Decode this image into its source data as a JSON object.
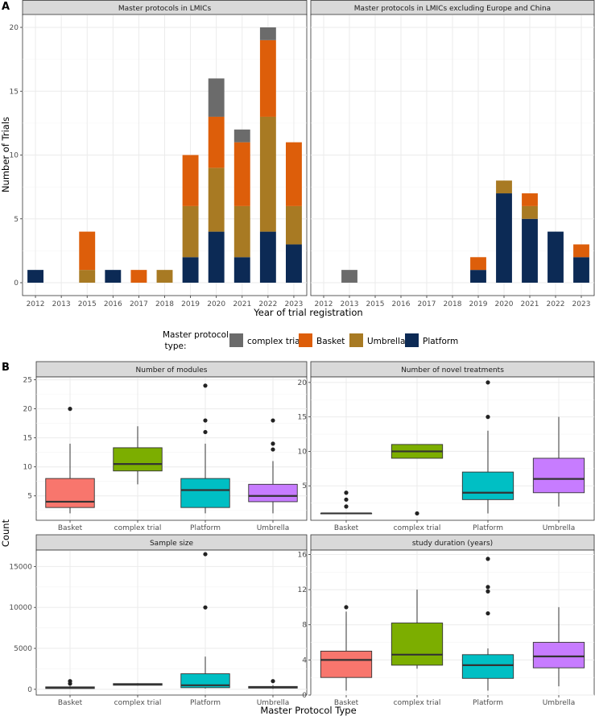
{
  "chart_data": [
    {
      "type": "bar",
      "stacked": true,
      "tag": "A",
      "panels": [
        {
          "strip": "Master protocols in LMICs",
          "categories": [
            "2012",
            "2013",
            "2015",
            "2016",
            "2017",
            "2018",
            "2019",
            "2020",
            "2021",
            "2022",
            "2023"
          ],
          "series": [
            {
              "name": "Platform",
              "values": [
                1,
                0,
                0,
                1,
                0,
                0,
                2,
                4,
                2,
                4,
                3
              ]
            },
            {
              "name": "Umbrella",
              "values": [
                0,
                0,
                1,
                0,
                0,
                1,
                4,
                5,
                4,
                9,
                3
              ]
            },
            {
              "name": "Basket",
              "values": [
                0,
                0,
                3,
                0,
                1,
                0,
                4,
                4,
                5,
                6,
                5
              ]
            },
            {
              "name": "complex trial",
              "values": [
                0,
                0,
                0,
                0,
                0,
                0,
                0,
                3,
                1,
                1,
                0
              ]
            }
          ]
        },
        {
          "strip": "Master protocols in LMICs excluding Europe and China",
          "categories": [
            "2012",
            "2013",
            "2015",
            "2016",
            "2017",
            "2018",
            "2019",
            "2020",
            "2021",
            "2022",
            "2023"
          ],
          "series": [
            {
              "name": "Platform",
              "values": [
                0,
                0,
                0,
                0,
                0,
                0,
                1,
                7,
                5,
                4,
                2
              ]
            },
            {
              "name": "Umbrella",
              "values": [
                0,
                0,
                0,
                0,
                0,
                0,
                0,
                1,
                1,
                0,
                0
              ]
            },
            {
              "name": "Basket",
              "values": [
                0,
                0,
                0,
                0,
                0,
                0,
                1,
                0,
                1,
                0,
                1
              ]
            },
            {
              "name": "complex trial",
              "values": [
                0,
                1,
                0,
                0,
                0,
                0,
                0,
                0,
                0,
                0,
                0
              ]
            }
          ]
        }
      ],
      "xlabel": "Year of trial registration",
      "ylabel": "Number of Trials",
      "ylim": [
        0,
        20.8
      ],
      "yticks": [
        0,
        5,
        10,
        15,
        20
      ],
      "legend": {
        "title_lines": [
          "Master protocol",
          "type:"
        ],
        "position": "bottom",
        "items": [
          {
            "name": "complex trial",
            "color": "#6b6b6b"
          },
          {
            "name": "Basket",
            "color": "#dd5e0a"
          },
          {
            "name": "Umbrella",
            "color": "#a87a23"
          },
          {
            "name": "Platform",
            "color": "#0c2a55"
          }
        ]
      }
    },
    {
      "type": "box",
      "tag": "B",
      "xlabel": "Master Protocol Type",
      "ylabel": "Count",
      "categories": [
        "Basket",
        "complex trial",
        "Platform",
        "Umbrella"
      ],
      "colors": [
        "#f8766d",
        "#7cae00",
        "#00bfc4",
        "#c77cff"
      ],
      "panels": [
        {
          "strip": "Number of modules",
          "ylim": [
            0.8,
            25.5
          ],
          "yticks": [
            5,
            10,
            15,
            20,
            25
          ],
          "boxes": [
            {
              "min": 2,
              "q1": 3,
              "median": 4,
              "q3": 8,
              "max": 14,
              "outliers": [
                20
              ]
            },
            {
              "min": 7,
              "q1": 9.3,
              "median": 10.5,
              "q3": 13.3,
              "max": 17,
              "outliers": []
            },
            {
              "min": 2,
              "q1": 3,
              "median": 6,
              "q3": 8,
              "max": 14,
              "outliers": [
                16,
                18,
                24
              ]
            },
            {
              "min": 2,
              "q1": 4,
              "median": 5,
              "q3": 7,
              "max": 11,
              "outliers": [
                13,
                14,
                18
              ]
            }
          ]
        },
        {
          "strip": "Number of novel treatments",
          "ylim": [
            0,
            20.8
          ],
          "yticks": [
            5,
            10,
            15,
            20
          ],
          "boxes": [
            {
              "min": 1,
              "q1": 1,
              "median": 1,
              "q3": 1,
              "max": 1,
              "outliers": [
                2,
                3,
                4
              ]
            },
            {
              "min": 9,
              "q1": 9,
              "median": 10,
              "q3": 11,
              "max": 11,
              "outliers": [
                1
              ]
            },
            {
              "min": 1,
              "q1": 3,
              "median": 4,
              "q3": 7,
              "max": 13,
              "outliers": [
                15,
                20
              ]
            },
            {
              "min": 2,
              "q1": 4,
              "median": 6,
              "q3": 9,
              "max": 15,
              "outliers": []
            }
          ]
        },
        {
          "strip": "Sample size",
          "ylim": [
            -700,
            17000
          ],
          "yticks": [
            0,
            5000,
            10000,
            15000
          ],
          "boxes": [
            {
              "min": 50,
              "q1": 100,
              "median": 200,
              "q3": 300,
              "max": 400,
              "outliers": [
                700,
                1000
              ]
            },
            {
              "min": 450,
              "q1": 500,
              "median": 600,
              "q3": 700,
              "max": 750,
              "outliers": []
            },
            {
              "min": 100,
              "q1": 200,
              "median": 500,
              "q3": 1900,
              "max": 4000,
              "outliers": [
                10000,
                16500
              ]
            },
            {
              "min": 50,
              "q1": 150,
              "median": 250,
              "q3": 350,
              "max": 500,
              "outliers": [
                1000
              ]
            }
          ]
        },
        {
          "strip": "study duration (years)",
          "ylim": [
            0,
            16.5
          ],
          "yticks": [
            0,
            4,
            8,
            12,
            16
          ],
          "boxes": [
            {
              "min": 0.5,
              "q1": 2,
              "median": 4,
              "q3": 5,
              "max": 9.5,
              "outliers": [
                10
              ]
            },
            {
              "min": 3,
              "q1": 3.4,
              "median": 4.6,
              "q3": 8.2,
              "max": 12,
              "outliers": []
            },
            {
              "min": 0.5,
              "q1": 1.9,
              "median": 3.4,
              "q3": 4.6,
              "max": 5.3,
              "outliers": [
                9.3,
                11.8,
                12.3,
                15.5
              ]
            },
            {
              "min": 1,
              "q1": 3.1,
              "median": 4.4,
              "q3": 6,
              "max": 10,
              "outliers": []
            }
          ]
        }
      ]
    }
  ]
}
